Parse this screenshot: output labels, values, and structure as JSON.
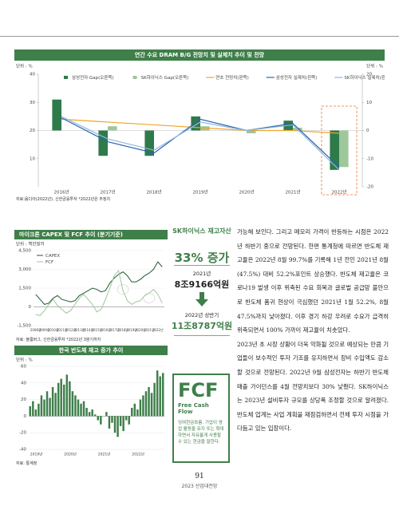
{
  "top_chart": {
    "type": "bar-line",
    "title": "연간 수요 DRAM B/G 전망치 및 실제치 추이 및 전망",
    "unit_left": "단위 : %",
    "unit_right": "단위 : %",
    "categories": [
      "2016년",
      "2017년",
      "2018년",
      "2019년",
      "2020년",
      "2021년",
      "2022년"
    ],
    "ylim": [
      0,
      40
    ],
    "yticks": [
      10,
      20,
      30,
      40
    ],
    "y2lim": [
      -20,
      20
    ],
    "y2ticks": [
      -20,
      -10,
      0,
      10,
      20
    ],
    "series": [
      {
        "name": "삼성전자 Gap(오른쪽)",
        "type": "bar",
        "axis": "y2",
        "color": "#2e7a4a",
        "values": [
          11,
          -9,
          -9,
          5,
          0,
          3.5,
          -14
        ]
      },
      {
        "name": "SK하이닉스 Gap(오른쪽)",
        "type": "bar",
        "axis": "y2",
        "color": "#9ec79b",
        "values": [
          0,
          1.5,
          0,
          1.5,
          -1,
          1,
          -13
        ]
      },
      {
        "name": "연초 전망치(왼쪽)",
        "type": "line",
        "color": "#f0a52c",
        "values": [
          24,
          23,
          22,
          21,
          20,
          20,
          19
        ]
      },
      {
        "name": "삼성전자 실제치(왼쪽)",
        "type": "line",
        "color": "#2a64b0",
        "values": [
          24.5,
          16,
          12,
          24,
          20,
          22.5,
          7
        ]
      },
      {
        "name": "SK하이닉스 실제치(왼쪽)",
        "type": "line",
        "color": "#8cb8e0",
        "values": [
          25,
          17,
          13,
          23,
          20,
          22,
          6
        ]
      }
    ],
    "source": "자료:옴디아(2022년), 신한금융투자 *2022년은 추정치"
  },
  "capex_chart": {
    "type": "line",
    "title": "마이크론 CAPEX 및 FCF 추이 (분기기준)",
    "unit": "단위 : 백만달러",
    "categories": [
      "2008년",
      null,
      "2009년",
      null,
      "2010년",
      null,
      "2011년",
      null,
      "2012년",
      null,
      "2013년",
      null,
      "2014년",
      null,
      "2015년",
      null,
      "2016년",
      null,
      "2017년",
      null,
      "2018년",
      null,
      "2019년",
      null,
      "2020년",
      null,
      "2021년",
      null,
      "2022년",
      null
    ],
    "ylim": [
      -1500,
      4500
    ],
    "yticks": [
      {
        "value": -1500,
        "label": "-1,500"
      },
      0,
      {
        "value": 1500,
        "label": "1,500"
      },
      {
        "value": 3000,
        "label": "3,000"
      },
      {
        "value": 4500,
        "label": "4,500"
      }
    ],
    "series": [
      {
        "name": "CAPEX",
        "color": "#1f5a33",
        "values": [
          1000,
          600,
          200,
          300,
          700,
          900,
          600,
          500,
          400,
          500,
          900,
          1100,
          1300,
          1500,
          1400,
          1200,
          1300,
          1900,
          2300,
          2600,
          2800,
          2500,
          2000,
          2000,
          2200,
          2500,
          2700,
          3000,
          3600,
          3200
        ]
      },
      {
        "name": "FCF",
        "color": "#9ec79b",
        "values": [
          -600,
          -700,
          -300,
          200,
          600,
          100,
          -200,
          -500,
          -300,
          200,
          700,
          1000,
          600,
          200,
          -400,
          -200,
          600,
          1500,
          2500,
          2900,
          1300,
          500,
          200,
          400,
          500,
          900,
          1100,
          1400,
          1000,
          300
        ]
      }
    ],
    "source": "자료: 블룸버그, 신한금융투자 *2022년 3분기까지"
  },
  "inventory_chart": {
    "type": "bar",
    "title": "한국 반도체 재고 증가 추이",
    "unit": "단위 : %",
    "color": "#3f7f4a",
    "grid": true,
    "categories": [
      "2019년",
      null,
      null,
      null,
      null,
      null,
      null,
      null,
      null,
      null,
      null,
      null,
      "2020년",
      null,
      null,
      null,
      null,
      null,
      null,
      null,
      null,
      null,
      null,
      null,
      "2021년",
      null,
      null,
      null,
      null,
      null,
      null,
      null,
      null,
      null,
      null,
      null,
      "2022년",
      null,
      null,
      null,
      null,
      null,
      null,
      null,
      null,
      null,
      null,
      null
    ],
    "values": [
      12,
      18,
      8,
      15,
      25,
      20,
      30,
      22,
      35,
      28,
      40,
      45,
      38,
      50,
      42,
      30,
      25,
      20,
      15,
      18,
      10,
      5,
      8,
      2,
      -5,
      -10,
      0,
      5,
      -15,
      -8,
      -20,
      -25,
      -12,
      -18,
      -5,
      -10,
      10,
      15,
      8,
      20,
      25,
      30,
      35,
      28,
      40,
      55,
      48,
      52
    ],
    "ylim": [
      -40,
      60
    ],
    "yticks": [
      -40,
      -20,
      0,
      20,
      40,
      60
    ],
    "source": "자료: 통계청"
  },
  "callout": {
    "title": "SK하이닉스 재고자산",
    "headline": "33% 증가",
    "period_1": "2021년",
    "amount_1": "8조9166억원",
    "period_2": "2022년 상반기",
    "amount_2": "11조8787억원"
  },
  "definition": {
    "term": "FCF",
    "english": "Free Cash Flow",
    "text": "잉여현금흐름. 기업이 영업 활동을 유지 또는 확대하면서 자유롭게 사용할 수 있는 현금을 말한다."
  },
  "body": {
    "paragraphs": [
      "가능해 보인다. 그리고 메모리 가격이 반등하는 시점은 2022년 하반기 중으로 전망된다. 한편 통계청에 따르면 반도체 재고율은 2022년 8월 99.7%를 기록해 1년 전인 2021년 8월(47.5%) 대비 52.2%포인트 상승했다. 반도체 재고율은 코로나19 발생 이후 위축된 수요 회복과 글로벌 공급망 불안으로 반도체 품귀 현상이 극심했던 2021년 1월 52.2%, 8월 47.5%까지 낮아졌다. 이후 경기 하강 우려로 수요가 급격히 위축되면서 100% 가까이 재고율이 치솟았다.",
      "2023년 초 시장 상황이 더욱 악화될 것으로 예상되는 만큼 기업들이 보수적인 투자 기조를 유지하면서 장비 수입액도 감소할 것으로 전망된다. 2022년 9월 삼성전자는 하반기 반도체 매출 가이던스를 4월 전망치보다 30% 낮췄다. SK하이닉스는 2023년 설비투자 규모를 상당폭 조정할 것으로 알려졌다. 반도체 업계는 사업 계획을 재점검하면서 전체 투자 시점을 가다듬고 있는 입장이다."
    ]
  },
  "footer": {
    "page_number": "91",
    "publication": "2023 산업대전망"
  }
}
